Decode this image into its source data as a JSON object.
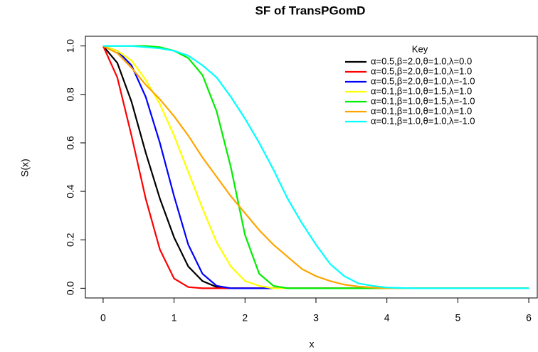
{
  "chart_data": {
    "type": "line",
    "title": "SF of TransPGomD",
    "x_label": "x",
    "y_label": "S(x)",
    "x": [
      0,
      0.2,
      0.4,
      0.6,
      0.8,
      1.0,
      1.2,
      1.4,
      1.6,
      1.8,
      2.0,
      2.2,
      2.4,
      2.6,
      2.8,
      3.0,
      3.2,
      3.4,
      3.6,
      3.8,
      4.0,
      4.2,
      4.4,
      4.6,
      5.0,
      5.5,
      6.0
    ],
    "series": [
      {
        "name": "α=0.5,β=2.0,θ=1.0,λ=0.0",
        "color": "#000000",
        "values": [
          1,
          0.93,
          0.77,
          0.56,
          0.37,
          0.21,
          0.09,
          0.03,
          0.005,
          0,
          0,
          0,
          0,
          0,
          0,
          0,
          0,
          0,
          0,
          0,
          0,
          0,
          0,
          0,
          0,
          0,
          0
        ]
      },
      {
        "name": "α=0.5,β=2.0,θ=1.0,λ=1.0",
        "color": "#ff0000",
        "values": [
          1,
          0.87,
          0.63,
          0.37,
          0.16,
          0.04,
          0.005,
          0,
          0,
          0,
          0,
          0,
          0,
          0,
          0,
          0,
          0,
          0,
          0,
          0,
          0,
          0,
          0,
          0,
          0,
          0,
          0
        ]
      },
      {
        "name": "α=0.5,β=2.0,θ=1.0,λ=-1.0",
        "color": "#0000ff",
        "values": [
          1,
          0.98,
          0.92,
          0.79,
          0.6,
          0.38,
          0.18,
          0.06,
          0.01,
          0,
          0,
          0,
          0,
          0,
          0,
          0,
          0,
          0,
          0,
          0,
          0,
          0,
          0,
          0,
          0,
          0,
          0
        ]
      },
      {
        "name": "α=0.1,β=1.0,θ=1.5,λ=1.0",
        "color": "#ffff00",
        "values": [
          1,
          0.98,
          0.94,
          0.86,
          0.76,
          0.63,
          0.48,
          0.33,
          0.19,
          0.09,
          0.03,
          0.01,
          0,
          0,
          0,
          0,
          0,
          0,
          0,
          0,
          0,
          0,
          0,
          0,
          0,
          0,
          0
        ]
      },
      {
        "name": "α=0.1,β=1.0,θ=1.5,λ=-1.0",
        "color": "#00ee00",
        "values": [
          1,
          1,
          1,
          1,
          0.995,
          0.98,
          0.95,
          0.88,
          0.73,
          0.5,
          0.22,
          0.06,
          0.01,
          0,
          0,
          0,
          0,
          0,
          0,
          0,
          0,
          0,
          0,
          0,
          0,
          0,
          0
        ]
      },
      {
        "name": "α=0.1,β=1.0,θ=1.0,λ=1.0",
        "color": "#ffa500",
        "values": [
          1,
          0.97,
          0.91,
          0.84,
          0.78,
          0.71,
          0.63,
          0.54,
          0.46,
          0.38,
          0.31,
          0.24,
          0.18,
          0.13,
          0.08,
          0.05,
          0.03,
          0.015,
          0.007,
          0.003,
          0,
          0,
          0,
          0,
          0,
          0,
          0
        ]
      },
      {
        "name": "α=0.1,β=1.0,θ=1.0,λ=-1.0",
        "color": "#00ffff",
        "values": [
          1,
          1,
          1,
          0.995,
          0.99,
          0.98,
          0.96,
          0.92,
          0.87,
          0.79,
          0.7,
          0.6,
          0.49,
          0.37,
          0.27,
          0.18,
          0.1,
          0.05,
          0.02,
          0.01,
          0.003,
          0.001,
          0,
          0,
          0,
          0,
          0
        ]
      }
    ],
    "legend_title": "Key",
    "legend_position": "top-right",
    "xlim": [
      -0.25,
      6.13
    ],
    "ylim": [
      -0.04,
      1.04
    ],
    "xticks": [
      0,
      1,
      2,
      3,
      4,
      5,
      6
    ],
    "yticks": [
      {
        "value": 0,
        "label": "0.0"
      },
      0.2,
      0.4,
      0.6,
      0.8,
      {
        "value": 1,
        "label": "1.0"
      }
    ]
  }
}
